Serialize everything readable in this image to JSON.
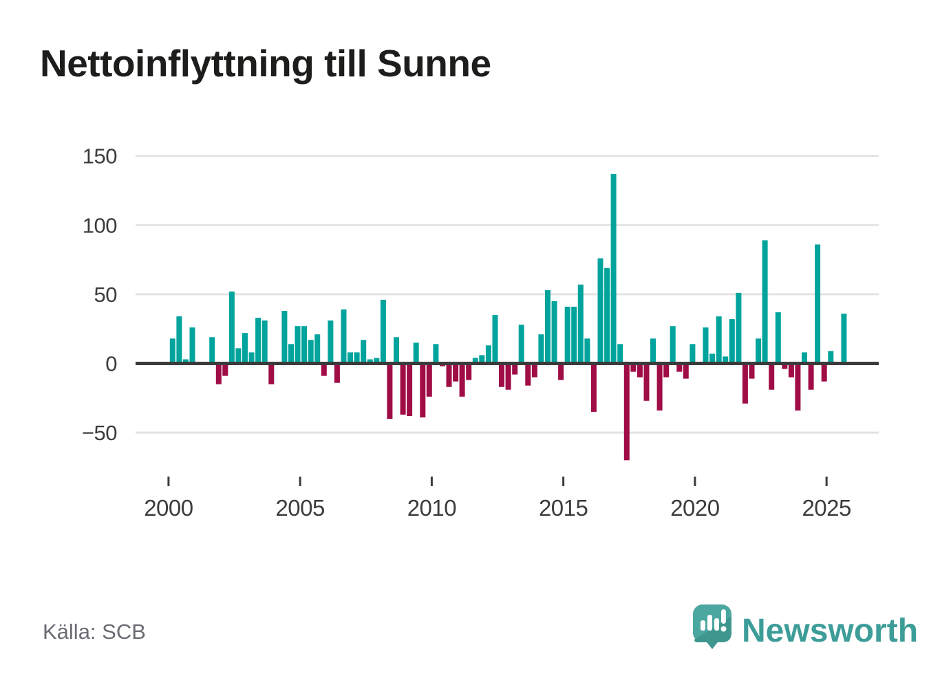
{
  "title": "Nettoinflyttning till Sunne",
  "source": "Källa: SCB",
  "brand": {
    "name": "Newsworthy"
  },
  "colors": {
    "positive": "#00a49c",
    "negative": "#9f0c46",
    "axis": "#3b3b3b",
    "grid": "#e3e3e3",
    "tick_label": "#3c3c3c",
    "title": "#1d1d1b",
    "source_text": "#6b6b74",
    "brand_teal": "#3d9d98",
    "logo_bubble": "#4ba7a0",
    "logo_bubble_shade": "#3f968f"
  },
  "chart_data": {
    "type": "bar",
    "title": "Nettoinflyttning till Sunne",
    "period": "quarterly",
    "start_year": 2000,
    "grid": "on",
    "x_tick_labels": [
      "2000",
      "2005",
      "2010",
      "2015",
      "2020",
      "2025"
    ],
    "y_tick_labels": [
      "150",
      "100",
      "50",
      "0",
      "−50"
    ],
    "y_ticks": [
      150,
      100,
      50,
      0,
      -50
    ],
    "ylim": [
      -75,
      155
    ],
    "values": [
      18,
      34,
      3,
      26,
      0,
      0,
      19,
      -15,
      -9,
      52,
      11,
      22,
      8,
      33,
      31,
      -15,
      0,
      38,
      14,
      27,
      27,
      17,
      21,
      -9,
      31,
      -14,
      39,
      8,
      8,
      17,
      3,
      4,
      46,
      -40,
      19,
      -37,
      -38,
      15,
      -39,
      -24,
      14,
      -2,
      -17,
      -13,
      -24,
      -12,
      4,
      6,
      13,
      35,
      -17,
      -19,
      -8,
      28,
      -16,
      -10,
      21,
      53,
      45,
      -12,
      41,
      41,
      57,
      18,
      -35,
      76,
      69,
      137,
      14,
      -70,
      -6,
      -10,
      -27,
      18,
      -34,
      -10,
      27,
      -6,
      -11,
      14,
      0,
      26,
      7,
      34,
      5,
      32,
      51,
      -29,
      -11,
      18,
      89,
      -19,
      37,
      -4,
      -10,
      -34,
      8,
      -19,
      86,
      -13,
      9,
      0,
      36
    ]
  }
}
